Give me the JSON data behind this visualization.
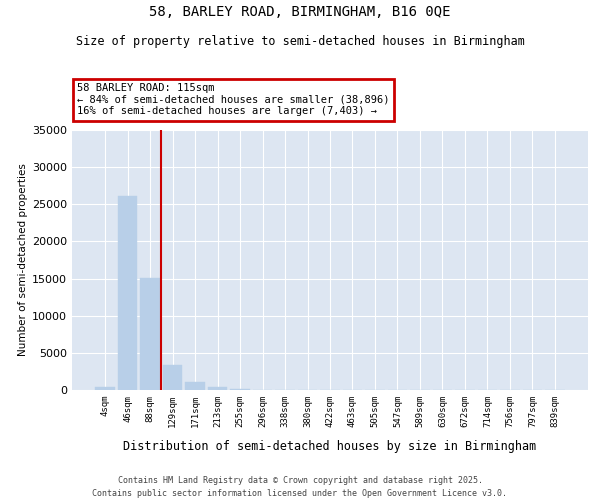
{
  "title_line1": "58, BARLEY ROAD, BIRMINGHAM, B16 0QE",
  "title_line2": "Size of property relative to semi-detached houses in Birmingham",
  "xlabel": "Distribution of semi-detached houses by size in Birmingham",
  "ylabel": "Number of semi-detached properties",
  "categories": [
    "4sqm",
    "46sqm",
    "88sqm",
    "129sqm",
    "171sqm",
    "213sqm",
    "255sqm",
    "296sqm",
    "338sqm",
    "380sqm",
    "422sqm",
    "463sqm",
    "505sqm",
    "547sqm",
    "589sqm",
    "630sqm",
    "672sqm",
    "714sqm",
    "756sqm",
    "797sqm",
    "839sqm"
  ],
  "values": [
    400,
    26100,
    15100,
    3300,
    1050,
    420,
    150,
    50,
    15,
    8,
    4,
    2,
    1,
    1,
    0,
    0,
    0,
    0,
    0,
    0,
    0
  ],
  "bar_color": "#b8cfe8",
  "vline_color": "#cc0000",
  "vline_x": 2.5,
  "annotation_title": "58 BARLEY ROAD: 115sqm",
  "annotation_line1": "← 84% of semi-detached houses are smaller (38,896)",
  "annotation_line2": "16% of semi-detached houses are larger (7,403) →",
  "annotation_edge_color": "#cc0000",
  "ylim_max": 35000,
  "yticks": [
    0,
    5000,
    10000,
    15000,
    20000,
    25000,
    30000,
    35000
  ],
  "bg_color": "#dde6f2",
  "footer_line1": "Contains HM Land Registry data © Crown copyright and database right 2025.",
  "footer_line2": "Contains public sector information licensed under the Open Government Licence v3.0."
}
